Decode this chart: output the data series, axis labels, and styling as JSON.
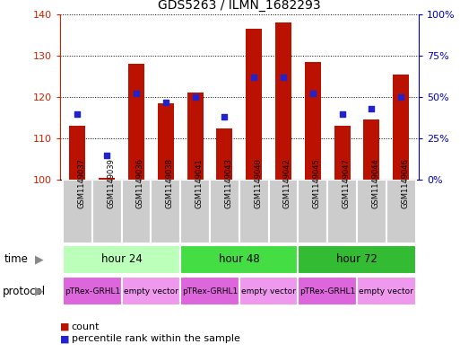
{
  "title": "GDS5263 / ILMN_1682293",
  "samples": [
    "GSM1149037",
    "GSM1149039",
    "GSM1149036",
    "GSM1149038",
    "GSM1149041",
    "GSM1149043",
    "GSM1149040",
    "GSM1149042",
    "GSM1149045",
    "GSM1149047",
    "GSM1149044",
    "GSM1149046"
  ],
  "counts": [
    113,
    100.5,
    128,
    118.5,
    121,
    112.5,
    136.5,
    138,
    128.5,
    113,
    114.5,
    125.5
  ],
  "percentiles": [
    40,
    15,
    52,
    47,
    50,
    38,
    62,
    62,
    52,
    40,
    43,
    50
  ],
  "ylim_left": [
    100,
    140
  ],
  "ylim_right": [
    0,
    100
  ],
  "yticks_left": [
    100,
    110,
    120,
    130,
    140
  ],
  "yticks_right": [
    0,
    25,
    50,
    75,
    100
  ],
  "ytick_labels_right": [
    "0%",
    "25%",
    "50%",
    "75%",
    "100%"
  ],
  "bar_color": "#bb1100",
  "dot_color": "#2222cc",
  "bar_bottom": 100,
  "bar_width": 0.55,
  "time_groups": [
    {
      "label": "hour 24",
      "start": 0,
      "end": 4,
      "color": "#bbffbb"
    },
    {
      "label": "hour 48",
      "start": 4,
      "end": 8,
      "color": "#44dd44"
    },
    {
      "label": "hour 72",
      "start": 8,
      "end": 12,
      "color": "#33bb33"
    }
  ],
  "protocol_groups": [
    {
      "label": "pTRex-GRHL1",
      "start": 0,
      "end": 2,
      "color": "#dd66dd"
    },
    {
      "label": "empty vector",
      "start": 2,
      "end": 4,
      "color": "#ee99ee"
    },
    {
      "label": "pTRex-GRHL1",
      "start": 4,
      "end": 6,
      "color": "#dd66dd"
    },
    {
      "label": "empty vector",
      "start": 6,
      "end": 8,
      "color": "#ee99ee"
    },
    {
      "label": "pTRex-GRHL1",
      "start": 8,
      "end": 10,
      "color": "#dd66dd"
    },
    {
      "label": "empty vector",
      "start": 10,
      "end": 12,
      "color": "#ee99ee"
    }
  ],
  "legend_count_label": "count",
  "legend_percentile_label": "percentile rank within the sample",
  "time_label": "time",
  "protocol_label": "protocol",
  "background_color": "#ffffff",
  "left_axis_color": "#cc2200",
  "right_axis_color": "#0000bb",
  "sample_bg_color": "#cccccc",
  "arrow_color": "#888888"
}
